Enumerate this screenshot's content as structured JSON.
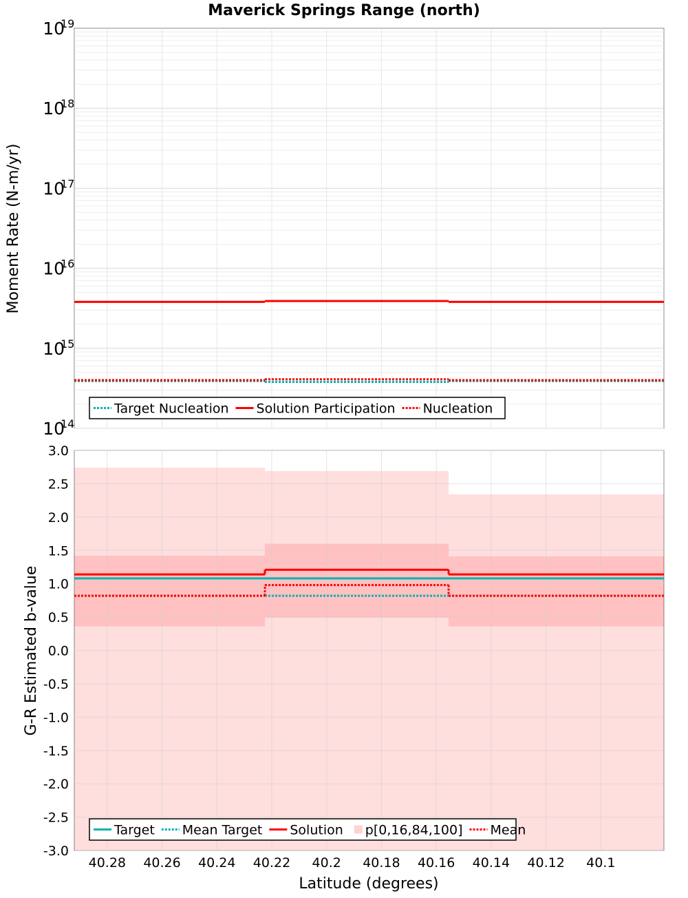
{
  "title": "Maverick Springs Range (north)",
  "chart_data": [
    {
      "type": "line",
      "title": "Maverick Springs Range (north)",
      "xlabel": "",
      "ylabel": "Moment Rate (N-m/yr)",
      "yscale": "log",
      "ylim": [
        100000000000000.0,
        1e+19
      ],
      "xlim": [
        40.292,
        40.077
      ],
      "x_reversed": true,
      "grid": true,
      "y_tick_labels": [
        {
          "base": "10",
          "exp": "14",
          "value": 100000000000000.0
        },
        {
          "base": "10",
          "exp": "15",
          "value": 1000000000000000.0
        },
        {
          "base": "10",
          "exp": "16",
          "value": 1e+16
        },
        {
          "base": "10",
          "exp": "17",
          "value": 1e+17
        },
        {
          "base": "10",
          "exp": "18",
          "value": 1e+18
        },
        {
          "base": "10",
          "exp": "19",
          "value": 1e+19
        }
      ],
      "segments": [
        {
          "x0": 40.292,
          "x1": 40.2225
        },
        {
          "x0": 40.2225,
          "x1": 40.1555
        },
        {
          "x0": 40.1555,
          "x1": 40.077
        }
      ],
      "series": [
        {
          "name": "Target Nucleation",
          "style": "dotted",
          "color": "#00b3b3",
          "values": [
            390000000000000.0,
            380000000000000.0,
            390000000000000.0
          ]
        },
        {
          "name": "Solution Participation",
          "style": "solid",
          "color": "#ff0000",
          "values": [
            3800000000000000.0,
            3900000000000000.0,
            3800000000000000.0
          ]
        },
        {
          "name": "Nucleation",
          "style": "dotted",
          "color": "#ff0000",
          "values": [
            400000000000000.0,
            410000000000000.0,
            400000000000000.0
          ]
        }
      ],
      "legend_position": "bottom-left"
    },
    {
      "type": "line",
      "xlabel": "Latitude (degrees)",
      "ylabel": "G-R Estimated b-value",
      "ylim": [
        -3.0,
        3.0
      ],
      "xlim": [
        40.292,
        40.077
      ],
      "x_reversed": true,
      "grid": true,
      "y_ticks": [
        "3.0",
        "2.5",
        "2.0",
        "1.5",
        "1.0",
        "0.5",
        "0.0",
        "-0.5",
        "-1.0",
        "-1.5",
        "-2.0",
        "-2.5",
        "-3.0"
      ],
      "x_ticks": [
        "40.28",
        "40.26",
        "40.24",
        "40.22",
        "40.2",
        "40.18",
        "40.16",
        "40.14",
        "40.12",
        "40.1"
      ],
      "segments": [
        {
          "x0": 40.292,
          "x1": 40.2225
        },
        {
          "x0": 40.2225,
          "x1": 40.1555
        },
        {
          "x0": 40.1555,
          "x1": 40.077
        }
      ],
      "bands": {
        "name": "p[0,16,84,100]",
        "color": "#ff0000",
        "p0": [
          -3.0,
          -3.0,
          -3.0
        ],
        "p16": [
          0.36,
          0.49,
          0.36
        ],
        "p84": [
          1.42,
          1.6,
          1.41
        ],
        "p100": [
          2.74,
          2.69,
          2.34
        ]
      },
      "series": [
        {
          "name": "Target",
          "style": "solid",
          "color": "#00b3b3",
          "values": [
            1.08,
            1.08,
            1.08
          ]
        },
        {
          "name": "Mean Target",
          "style": "dotted",
          "color": "#00b3b3",
          "values": [
            0.82,
            0.82,
            0.82
          ]
        },
        {
          "name": "Solution",
          "style": "solid",
          "color": "#ff0000",
          "values": [
            1.14,
            1.21,
            1.14
          ]
        },
        {
          "name": "Mean",
          "style": "dotted",
          "color": "#ff0000",
          "values": [
            0.82,
            0.98,
            0.82
          ]
        }
      ],
      "legend_position": "bottom-left"
    }
  ]
}
